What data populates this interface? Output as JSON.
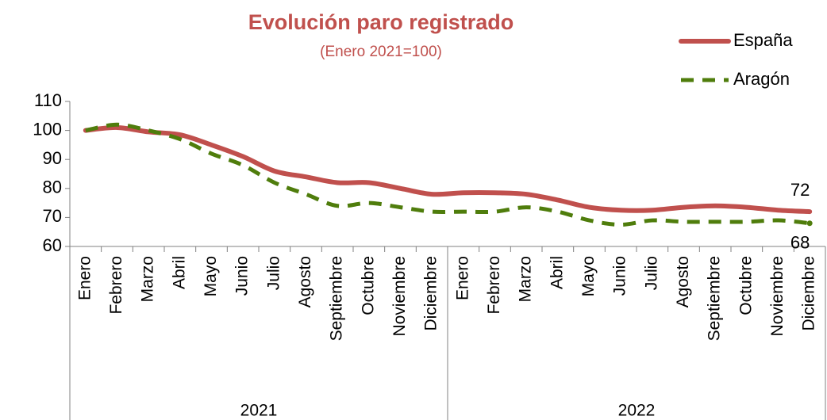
{
  "chart_data": {
    "type": "line",
    "title": "Evolución paro registrado",
    "subtitle": "(Enero 2021=100)",
    "categories": [
      "Enero",
      "Febrero",
      "Marzo",
      "Abril",
      "Mayo",
      "Junio",
      "Julio",
      "Agosto",
      "Septiembre",
      "Octubre",
      "Noviembre",
      "Diciembre",
      "Enero",
      "Febrero",
      "Marzo",
      "Abril",
      "Mayo",
      "Junio",
      "Julio",
      "Agosto",
      "Septiembre",
      "Octubre",
      "Noviembre",
      "Diciembre"
    ],
    "category_groups": [
      "2021",
      "2022"
    ],
    "series": [
      {
        "name": "España",
        "color": "#c0504d",
        "dashed": false,
        "values": [
          100,
          101,
          99.5,
          98.5,
          95,
          91,
          86,
          84,
          82,
          82,
          80,
          78,
          78.5,
          78.5,
          78,
          76,
          73.5,
          72.5,
          72.5,
          73.5,
          74,
          73.5,
          72.5,
          72
        ]
      },
      {
        "name": "Aragón",
        "color": "#4f7d0c",
        "dashed": true,
        "values": [
          100,
          102,
          100,
          97,
          92,
          88,
          82,
          78,
          74,
          75,
          73.5,
          72,
          72,
          72,
          73.5,
          72,
          69,
          67.5,
          69,
          68.5,
          68.5,
          68.5,
          69,
          68
        ]
      }
    ],
    "ylim": [
      60,
      110
    ],
    "yticks": [
      60,
      70,
      80,
      90,
      100,
      110
    ],
    "grid": false,
    "legend": "top-right"
  }
}
